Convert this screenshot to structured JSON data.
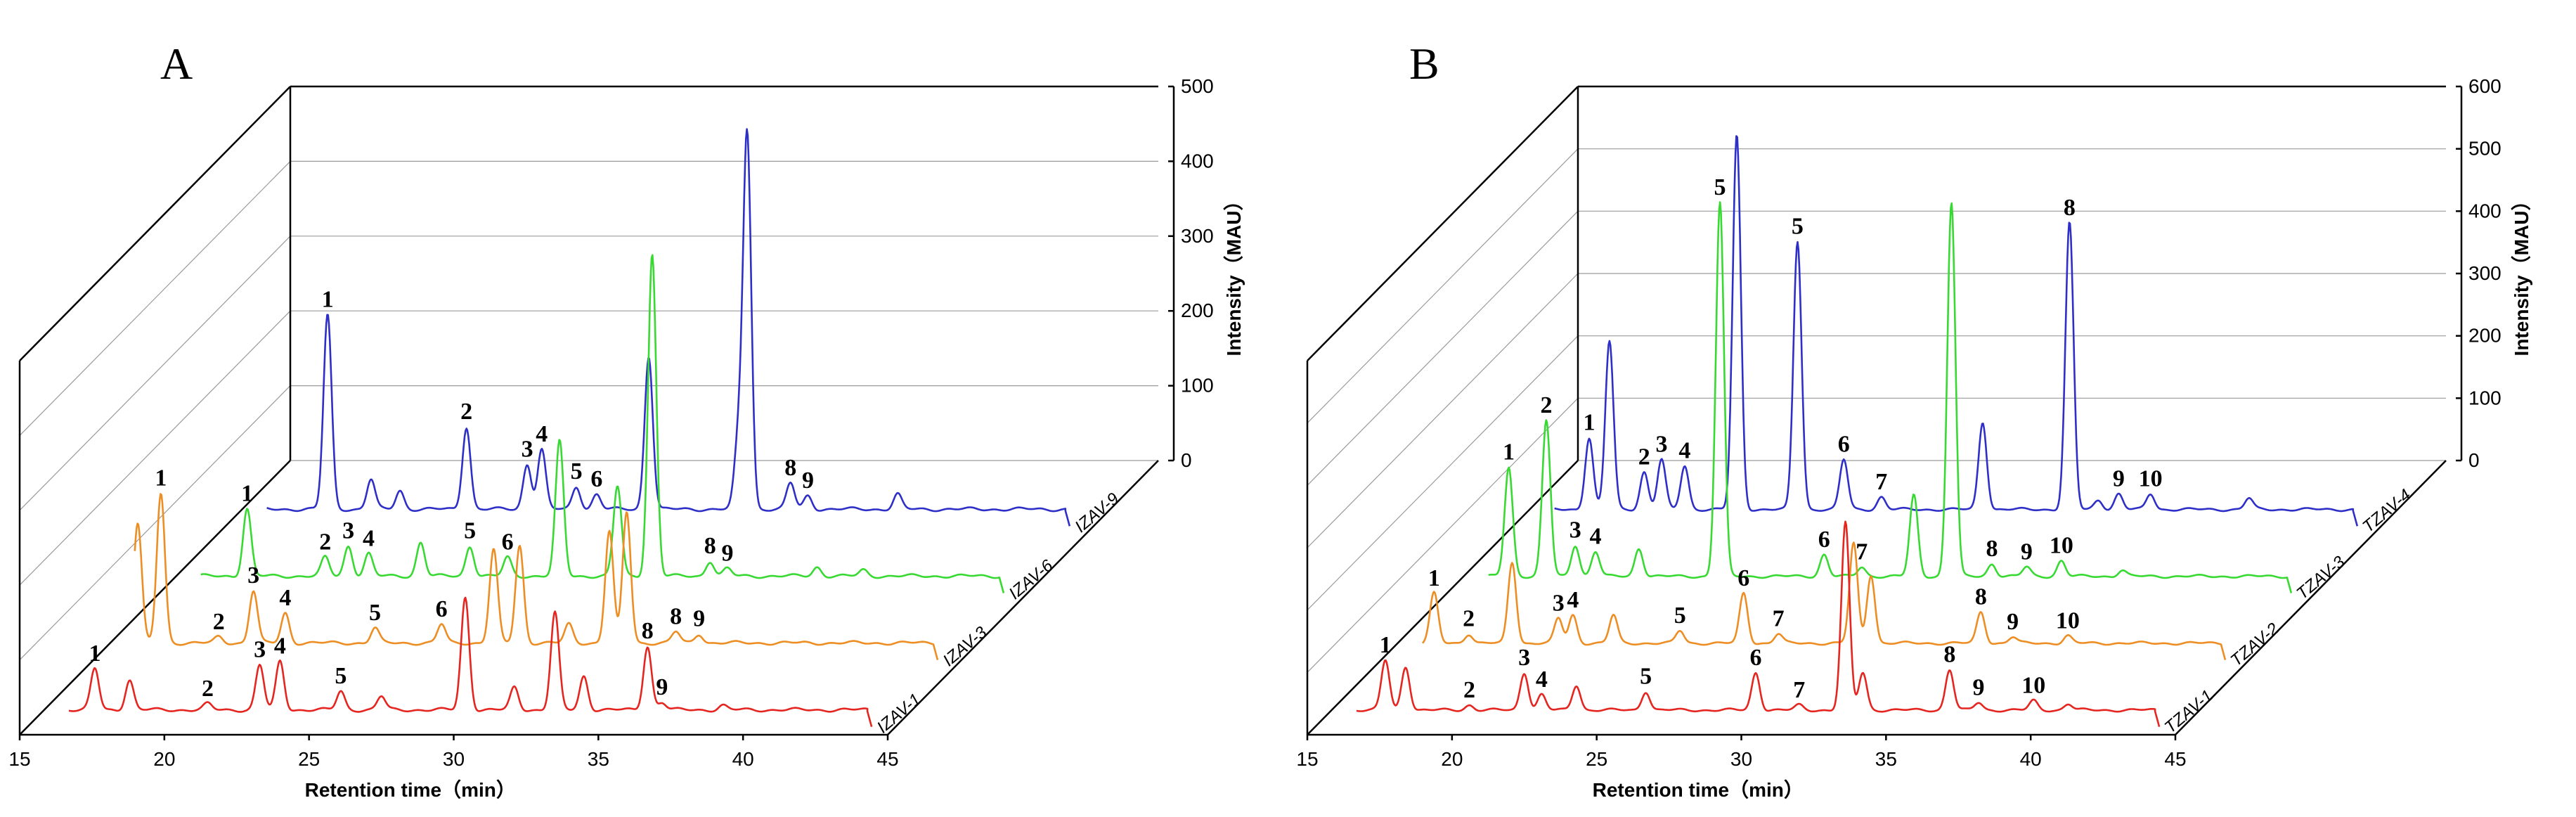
{
  "chart_data": [
    {
      "type": "line",
      "panel": "A",
      "xlabel": "Retention time（min）",
      "ylabel": "Intensity（MAU）",
      "xlim": [
        15,
        45
      ],
      "x_ticks": [
        15,
        20,
        25,
        30,
        35,
        40,
        45
      ],
      "ylim": [
        0,
        500
      ],
      "y_ticks": [
        0,
        100,
        200,
        300,
        400,
        500
      ],
      "series": [
        {
          "name": "IZAV-1",
          "color": "#e52520",
          "peaks": [
            [
              16.8,
              "1",
              55
            ],
            [
              18.0,
              null,
              40
            ],
            [
              20.7,
              "2",
              8
            ],
            [
              22.5,
              "3",
              60
            ],
            [
              23.2,
              "4",
              65
            ],
            [
              25.3,
              "5",
              25
            ],
            [
              26.7,
              null,
              18
            ],
            [
              29.6,
              null,
              150
            ],
            [
              31.3,
              null,
              30
            ],
            [
              32.7,
              null,
              130
            ],
            [
              33.7,
              null,
              45
            ],
            [
              35.9,
              "8",
              85
            ],
            [
              36.4,
              "9",
              10
            ],
            [
              38.5,
              null,
              6
            ]
          ]
        },
        {
          "name": "IZAV-3",
          "color": "#ed8e25",
          "peaks": [
            [
              16.0,
              null,
              160
            ],
            [
              16.8,
              "1",
              200
            ],
            [
              18.8,
              "2",
              8
            ],
            [
              20.0,
              "3",
              70
            ],
            [
              21.1,
              "4",
              40
            ],
            [
              24.2,
              "5",
              20
            ],
            [
              26.5,
              "6",
              25
            ],
            [
              28.3,
              null,
              125
            ],
            [
              29.2,
              null,
              130
            ],
            [
              30.9,
              null,
              25
            ],
            [
              32.3,
              null,
              150
            ],
            [
              32.9,
              null,
              175
            ],
            [
              34.6,
              "8",
              15
            ],
            [
              35.4,
              "9",
              12
            ]
          ]
        },
        {
          "name": "IZAV-6",
          "color": "#39d933",
          "peaks": [
            [
              17.5,
              "1",
              90
            ],
            [
              20.2,
              "2",
              25
            ],
            [
              21.0,
              "3",
              40
            ],
            [
              21.7,
              "4",
              30
            ],
            [
              23.5,
              null,
              45
            ],
            [
              25.2,
              "5",
              40
            ],
            [
              26.5,
              "6",
              25
            ],
            [
              28.3,
              null,
              180
            ],
            [
              30.3,
              null,
              120
            ],
            [
              31.5,
              null,
              430
            ],
            [
              33.5,
              "8",
              20
            ],
            [
              34.1,
              "9",
              10
            ],
            [
              37.2,
              null,
              12
            ],
            [
              38.8,
              null,
              8
            ]
          ]
        },
        {
          "name": "IZAV-9",
          "color": "#2e2fc7",
          "peaks": [
            [
              18.0,
              "1",
              260
            ],
            [
              19.5,
              null,
              40
            ],
            [
              20.5,
              null,
              25
            ],
            [
              22.8,
              "2",
              110
            ],
            [
              24.9,
              "3",
              60
            ],
            [
              25.4,
              "4",
              80
            ],
            [
              26.6,
              "5",
              30
            ],
            [
              27.3,
              "6",
              20
            ],
            [
              29.1,
              null,
              205
            ],
            [
              32.2,
              null,
              90
            ],
            [
              32.5,
              null,
              500
            ],
            [
              34.0,
              "8",
              35
            ],
            [
              34.6,
              "9",
              18
            ],
            [
              37.7,
              null,
              20
            ]
          ]
        }
      ]
    },
    {
      "type": "line",
      "panel": "B",
      "xlabel": "Retention time（min）",
      "ylabel": "Intensity（MAU）",
      "xlim": [
        15,
        45
      ],
      "x_ticks": [
        15,
        20,
        25,
        30,
        35,
        40,
        45
      ],
      "ylim": [
        0,
        600
      ],
      "y_ticks": [
        0,
        100,
        200,
        300,
        400,
        500,
        600
      ],
      "series": [
        {
          "name": "TZAV-1",
          "color": "#e52520",
          "peaks": [
            [
              16.9,
              "1",
              80
            ],
            [
              17.6,
              null,
              70
            ],
            [
              19.8,
              "2",
              8
            ],
            [
              21.7,
              "3",
              60
            ],
            [
              22.3,
              "4",
              25
            ],
            [
              23.5,
              null,
              40
            ],
            [
              25.9,
              "5",
              30
            ],
            [
              29.7,
              "6",
              60
            ],
            [
              31.2,
              "7",
              8
            ],
            [
              32.8,
              null,
              300
            ],
            [
              33.4,
              null,
              60
            ],
            [
              36.4,
              "8",
              65
            ],
            [
              37.4,
              "9",
              12
            ],
            [
              39.3,
              "10",
              15
            ],
            [
              40.5,
              null,
              10
            ]
          ]
        },
        {
          "name": "TZAV-2",
          "color": "#ed8e25",
          "peaks": [
            [
              16.3,
              "1",
              80
            ],
            [
              17.5,
              "2",
              15
            ],
            [
              19.0,
              null,
              130
            ],
            [
              20.6,
              "3",
              40
            ],
            [
              21.1,
              "4",
              45
            ],
            [
              22.5,
              null,
              45
            ],
            [
              24.8,
              "5",
              20
            ],
            [
              27.0,
              "6",
              80
            ],
            [
              28.2,
              "7",
              15
            ],
            [
              30.8,
              null,
              160
            ],
            [
              31.4,
              null,
              110
            ],
            [
              35.2,
              "8",
              50
            ],
            [
              36.3,
              "9",
              10
            ],
            [
              38.2,
              "10",
              12
            ]
          ]
        },
        {
          "name": "TZAV-3",
          "color": "#39d933",
          "peaks": [
            [
              16.6,
              "1",
              175
            ],
            [
              17.9,
              "2",
              250
            ],
            [
              18.9,
              "3",
              50
            ],
            [
              19.6,
              "4",
              40
            ],
            [
              21.1,
              null,
              45
            ],
            [
              23.9,
              "5",
              600
            ],
            [
              27.5,
              "6",
              35
            ],
            [
              28.8,
              "7",
              15
            ],
            [
              30.6,
              null,
              130
            ],
            [
              31.9,
              null,
              600
            ],
            [
              33.3,
              "8",
              20
            ],
            [
              34.5,
              "9",
              15
            ],
            [
              35.7,
              "10",
              25
            ],
            [
              37.8,
              null,
              10
            ]
          ]
        },
        {
          "name": "TZAV-4",
          "color": "#2e2fc7",
          "peaks": [
            [
              17.1,
              "1",
              115
            ],
            [
              17.8,
              null,
              270
            ],
            [
              19.0,
              "2",
              60
            ],
            [
              19.6,
              "3",
              80
            ],
            [
              20.4,
              "4",
              70
            ],
            [
              22.2,
              null,
              600
            ],
            [
              24.3,
              "5",
              430
            ],
            [
              25.9,
              "6",
              80
            ],
            [
              27.2,
              "7",
              20
            ],
            [
              30.7,
              null,
              140
            ],
            [
              33.7,
              "8",
              460
            ],
            [
              34.7,
              null,
              15
            ],
            [
              35.4,
              "9",
              25
            ],
            [
              36.5,
              "10",
              25
            ],
            [
              39.9,
              null,
              18
            ]
          ]
        }
      ]
    }
  ],
  "figure": {
    "panel_a_letter": "A",
    "panel_b_letter": "B"
  }
}
